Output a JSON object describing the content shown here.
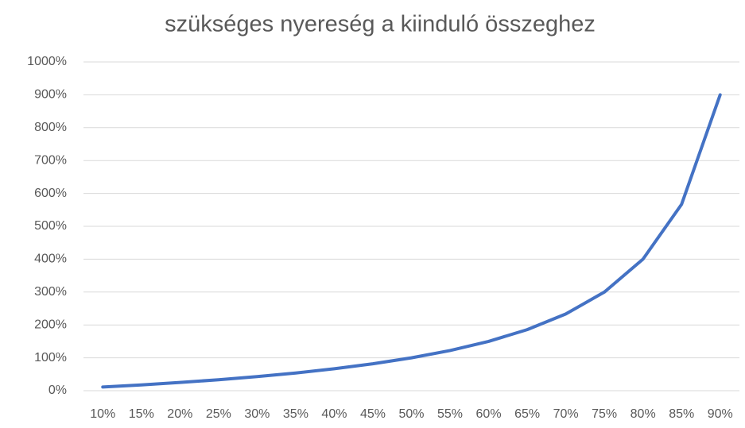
{
  "chart_data": {
    "type": "line",
    "title": "szükséges nyereség a kiinduló összeghez",
    "categories": [
      "10%",
      "15%",
      "20%",
      "25%",
      "30%",
      "35%",
      "40%",
      "45%",
      "50%",
      "55%",
      "60%",
      "65%",
      "70%",
      "75%",
      "80%",
      "85%",
      "90%"
    ],
    "series": [
      {
        "name": "szükséges nyereség",
        "color": "#4472c4",
        "values": [
          11.1,
          17.6,
          25,
          33.3,
          42.9,
          53.8,
          66.7,
          81.8,
          100,
          122.2,
          150,
          185.7,
          233.3,
          300,
          400,
          566.7,
          900
        ]
      }
    ],
    "ylim": [
      0,
      1000
    ],
    "yticks": [
      {
        "value": 0,
        "label": "0%"
      },
      {
        "value": 100,
        "label": "100%"
      },
      {
        "value": 200,
        "label": "200%"
      },
      {
        "value": 300,
        "label": "300%"
      },
      {
        "value": 400,
        "label": "400%"
      },
      {
        "value": 500,
        "label": "500%"
      },
      {
        "value": 600,
        "label": "600%"
      },
      {
        "value": 700,
        "label": "700%"
      },
      {
        "value": 800,
        "label": "800%"
      },
      {
        "value": 900,
        "label": "900%"
      },
      {
        "value": 1000,
        "label": "1000%"
      }
    ],
    "grid": true
  }
}
